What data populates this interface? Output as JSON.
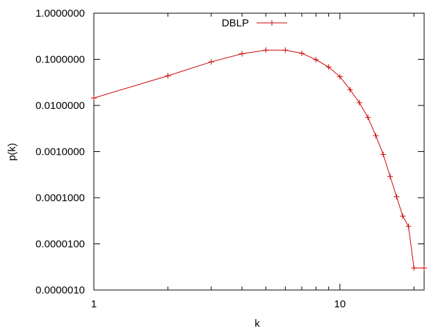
{
  "chart_data": {
    "type": "line",
    "xlabel": "k",
    "ylabel": "p(k)",
    "x_scale": "log",
    "y_scale": "log",
    "xlim": [
      1,
      22
    ],
    "ylim": [
      1e-06,
      1
    ],
    "grid": false,
    "legend_position": "top-center",
    "x_ticks": [
      {
        "value": 1,
        "label": "1"
      },
      {
        "value": 10,
        "label": "10"
      }
    ],
    "y_ticks": [
      {
        "value": 1,
        "label": "1.0000000"
      },
      {
        "value": 0.1,
        "label": "0.1000000"
      },
      {
        "value": 0.01,
        "label": "0.0100000"
      },
      {
        "value": 0.001,
        "label": "0.0010000"
      },
      {
        "value": 0.0001,
        "label": "0.0001000"
      },
      {
        "value": 1e-05,
        "label": "0.0000100"
      },
      {
        "value": 1e-06,
        "label": "0.0000010"
      }
    ],
    "series": [
      {
        "name": "DBLP",
        "color": "#cc0000",
        "marker": "plus",
        "x": [
          1,
          2,
          3,
          4,
          5,
          6,
          7,
          8,
          9,
          10,
          11,
          12,
          13,
          14,
          15,
          16,
          17,
          18,
          19,
          20,
          22
        ],
        "y": [
          0.0145,
          0.044,
          0.088,
          0.132,
          0.158,
          0.158,
          0.135,
          0.098,
          0.068,
          0.042,
          0.022,
          0.0115,
          0.0055,
          0.0022,
          0.00087,
          0.00029,
          0.000105,
          4e-05,
          2.4e-05,
          3e-06,
          3e-06
        ]
      }
    ]
  }
}
